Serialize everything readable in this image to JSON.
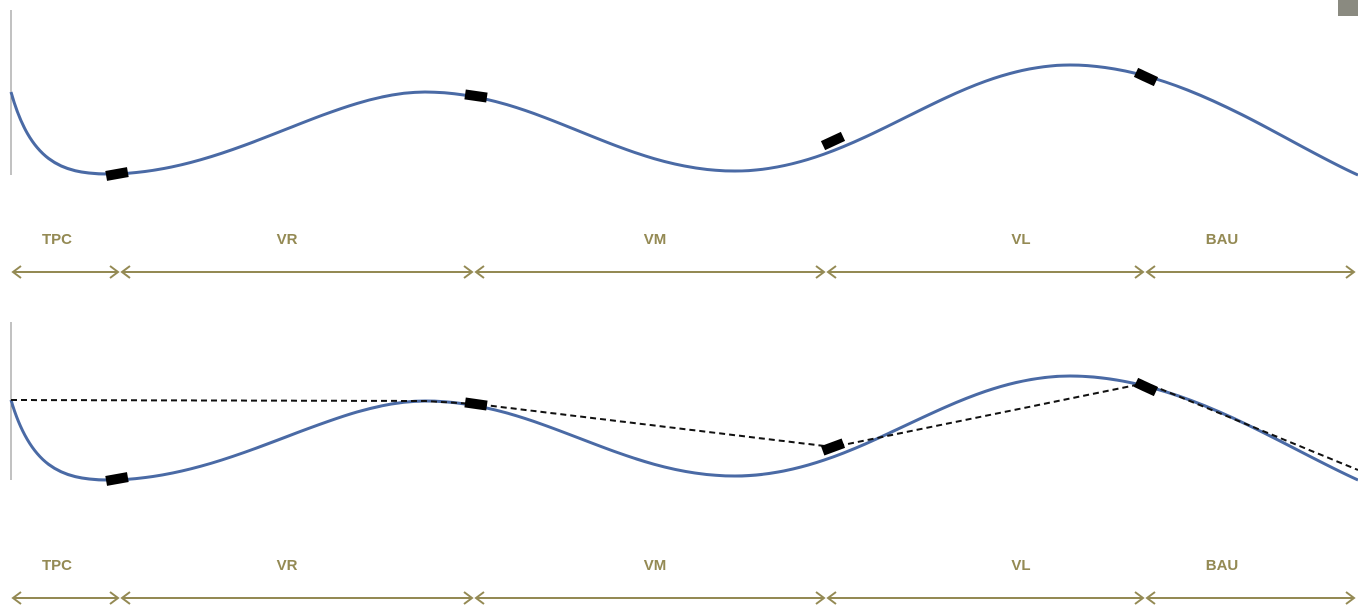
{
  "panels": [
    {
      "segments": [
        {
          "label": "TPC"
        },
        {
          "label": "VR"
        },
        {
          "label": "VM"
        },
        {
          "label": "VL"
        },
        {
          "label": "BAU"
        }
      ]
    },
    {
      "segments": [
        {
          "label": "TPC"
        },
        {
          "label": "VR"
        },
        {
          "label": "VM"
        },
        {
          "label": "VL"
        },
        {
          "label": "BAU"
        }
      ]
    }
  ]
}
